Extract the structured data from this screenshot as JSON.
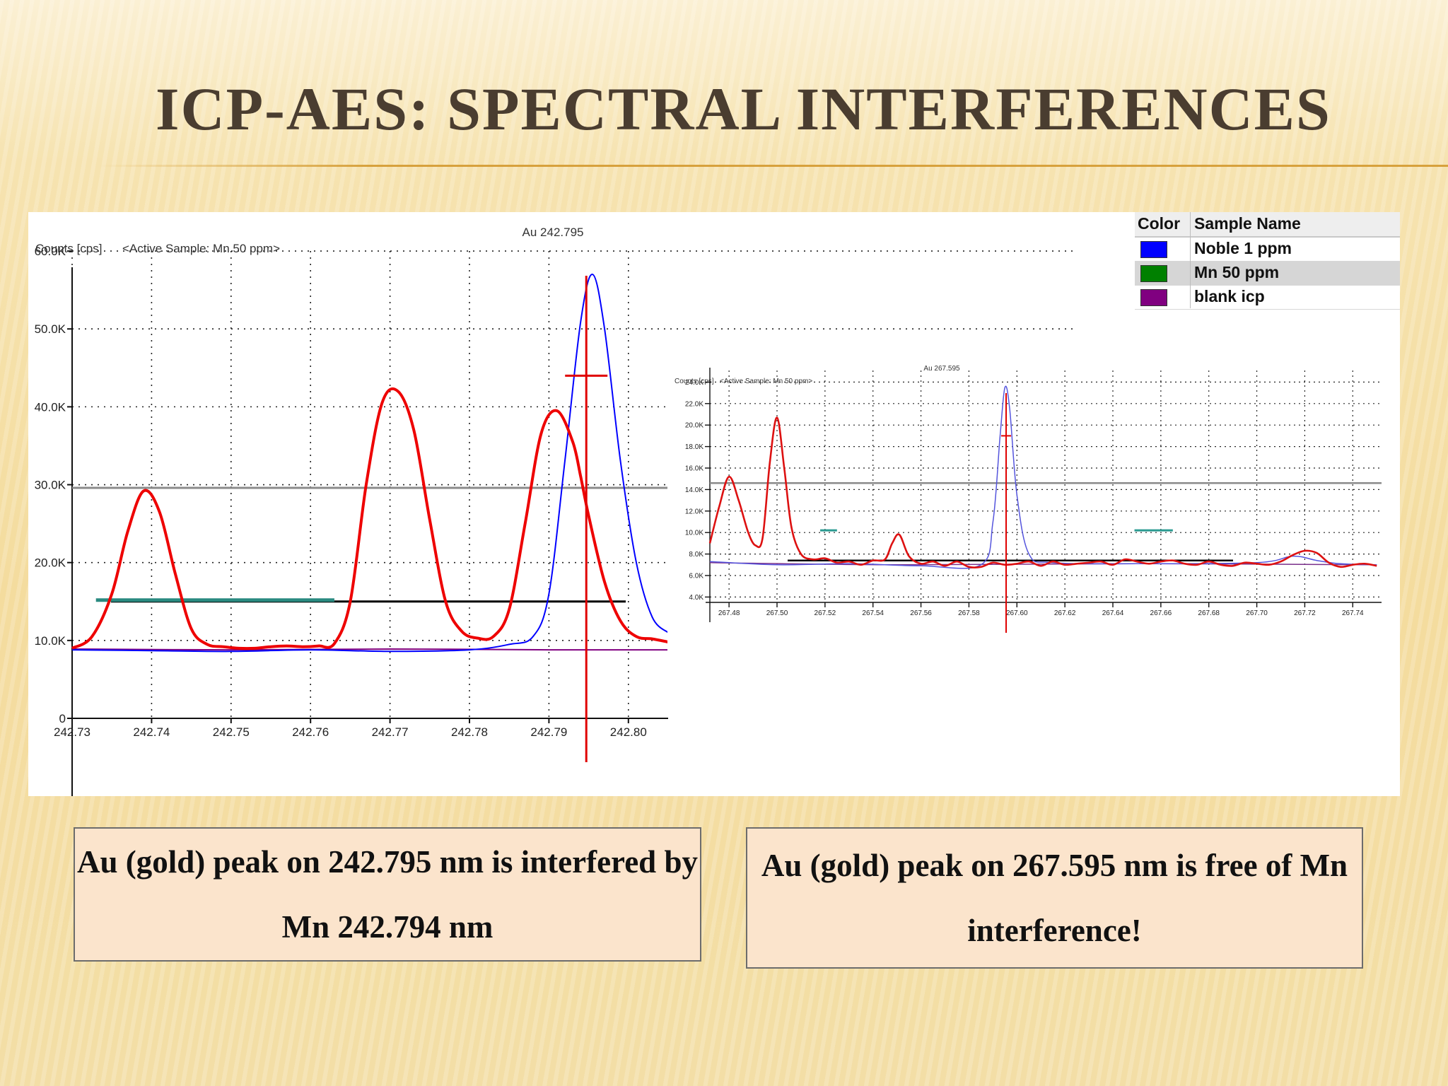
{
  "slide": {
    "title": "ICP-AES: SPECTRAL INTERFERENCES",
    "caption_left": "Au (gold) peak on 242.795 nm is interfered by Mn 242.794 nm",
    "caption_right": "Au (gold) peak on 267.595 nm is free of  Mn interference!"
  },
  "legend": {
    "col_color": "Color",
    "col_name": "Sample Name",
    "entries": [
      {
        "name": "Noble 1 ppm",
        "color": "#0000ff"
      },
      {
        "name": "Mn 50 ppm",
        "color": "#008000"
      },
      {
        "name": "blank icp",
        "color": "#800080"
      }
    ]
  },
  "chart_data": [
    {
      "type": "line",
      "title": "Au 242.795",
      "ylabel": "Counts [cps]",
      "annotation": "<Active Sample: Mn 50 ppm>",
      "xlim": [
        242.73,
        242.805
      ],
      "ylim": [
        0,
        65000
      ],
      "x_ticks": [
        "242.73",
        "242.74",
        "242.75",
        "242.76",
        "242.77",
        "242.78",
        "242.79",
        "242.80"
      ],
      "y_ticks": [
        "0",
        "10.0K",
        "20.0K",
        "30.0K",
        "40.0K",
        "50.0K",
        "60.0K"
      ],
      "y_tick_values": [
        0,
        10000,
        20000,
        30000,
        40000,
        50000,
        60000
      ],
      "grid": "dotted",
      "marker_line": 242.7947,
      "threshold_line": 29600,
      "background_line": 15000,
      "background_window": [
        242.733,
        242.763
      ],
      "series": [
        {
          "name": "Mn 50 ppm",
          "color": "#ee0000",
          "x": [
            242.73,
            242.7325,
            242.735,
            242.737,
            242.739,
            242.741,
            242.743,
            242.745,
            242.747,
            242.749,
            242.751,
            242.753,
            242.755,
            242.757,
            242.759,
            242.761,
            242.763,
            242.765,
            242.767,
            242.769,
            242.771,
            242.773,
            242.775,
            242.777,
            242.779,
            242.781,
            242.783,
            242.785,
            242.787,
            242.789,
            242.791,
            242.793,
            242.794,
            242.795,
            242.797,
            242.799,
            242.801,
            242.803,
            242.805
          ],
          "y": [
            9000,
            10500,
            16000,
            24000,
            29200,
            26500,
            18500,
            11500,
            9500,
            9200,
            9000,
            9000,
            9200,
            9300,
            9200,
            9300,
            9600,
            15000,
            30000,
            40500,
            42000,
            37000,
            25500,
            15000,
            11200,
            10300,
            10500,
            14000,
            25000,
            36500,
            39500,
            35500,
            31000,
            26000,
            17500,
            12500,
            10500,
            10200,
            9800
          ]
        },
        {
          "name": "Noble 1 ppm",
          "color": "#0000ff",
          "x": [
            242.73,
            242.74,
            242.75,
            242.76,
            242.77,
            242.78,
            242.785,
            242.788,
            242.79,
            242.792,
            242.794,
            242.7955,
            242.797,
            242.799,
            242.801,
            242.803,
            242.805
          ],
          "y": [
            8800,
            8700,
            8600,
            8800,
            8600,
            8800,
            9500,
            10500,
            16000,
            33000,
            51000,
            57000,
            50000,
            33000,
            20000,
            13000,
            11000
          ]
        },
        {
          "name": "blank icp",
          "color": "#800080",
          "x": [
            242.73,
            242.75,
            242.77,
            242.79,
            242.805
          ],
          "y": [
            8900,
            8800,
            8900,
            8800,
            8800
          ]
        }
      ]
    },
    {
      "type": "line",
      "title": "Au 267.595",
      "ylabel": "Counts [cps]",
      "annotation": "<Active Sample: Mn 50 ppm>",
      "xlim": [
        267.472,
        267.752
      ],
      "ylim": [
        3500,
        26000
      ],
      "x_ticks": [
        "267.48",
        "267.50",
        "267.52",
        "267.54",
        "267.56",
        "267.58",
        "267.60",
        "267.62",
        "267.64",
        "267.66",
        "267.68",
        "267.70",
        "267.72",
        "267.74"
      ],
      "y_ticks": [
        "4.0K",
        "6.0K",
        "8.0K",
        "10.0K",
        "12.0K",
        "14.0K",
        "16.0K",
        "18.0K",
        "20.0K",
        "22.0K",
        "24.0K"
      ],
      "y_tick_values": [
        4000,
        6000,
        8000,
        10000,
        12000,
        14000,
        16000,
        18000,
        20000,
        22000,
        24000
      ],
      "grid": "dotted",
      "marker_line": 267.5955,
      "threshold_line": 14600,
      "background_line": 7400,
      "series": [
        {
          "name": "Mn 50 ppm",
          "color": "#dd1111",
          "x": [
            267.472,
            267.476,
            267.48,
            267.484,
            267.488,
            267.491,
            267.494,
            267.497,
            267.5,
            267.503,
            267.506,
            267.51,
            267.515,
            267.52,
            267.525,
            267.53,
            267.535,
            267.54,
            267.545,
            267.548,
            267.551,
            267.555,
            267.56,
            267.565,
            267.57,
            267.575,
            267.58,
            267.585,
            267.59,
            267.595,
            267.6,
            267.605,
            267.61,
            267.615,
            267.62,
            267.625,
            267.63,
            267.635,
            267.64,
            267.645,
            267.65,
            267.655,
            267.66,
            267.665,
            267.67,
            267.675,
            267.68,
            267.685,
            267.69,
            267.695,
            267.7,
            267.705,
            267.71,
            267.715,
            267.72,
            267.725,
            267.73,
            267.735,
            267.74,
            267.745,
            267.75
          ],
          "y": [
            9000,
            12500,
            15200,
            13000,
            10000,
            8800,
            9500,
            16500,
            20700,
            16000,
            10500,
            8000,
            7500,
            7600,
            7200,
            7300,
            7000,
            7400,
            7500,
            9000,
            9800,
            7800,
            7100,
            7300,
            6900,
            7300,
            6800,
            6800,
            7200,
            7000,
            7100,
            7300,
            6900,
            7300,
            7000,
            7100,
            7200,
            7300,
            7000,
            7500,
            7300,
            7100,
            7300,
            7400,
            7100,
            7000,
            7300,
            7000,
            6900,
            7200,
            7100,
            7000,
            7300,
            7900,
            8300,
            8100,
            7200,
            6800,
            7000,
            7100,
            6900
          ]
        },
        {
          "name": "Noble 1 ppm",
          "color": "#5555dd",
          "x": [
            267.472,
            267.5,
            267.53,
            267.56,
            267.585,
            267.59,
            267.593,
            267.595,
            267.597,
            267.6,
            267.605,
            267.615,
            267.65,
            267.7,
            267.715,
            267.725,
            267.735,
            267.75
          ],
          "y": [
            7300,
            7000,
            7100,
            6900,
            7000,
            11000,
            19000,
            23500,
            21500,
            13500,
            8000,
            7200,
            7100,
            7200,
            7800,
            7400,
            7100,
            7000
          ]
        },
        {
          "name": "blank icp",
          "color": "#7a2f8a",
          "x": [
            267.472,
            267.55,
            267.65,
            267.75
          ],
          "y": [
            7200,
            7000,
            7100,
            7000
          ]
        }
      ]
    }
  ]
}
